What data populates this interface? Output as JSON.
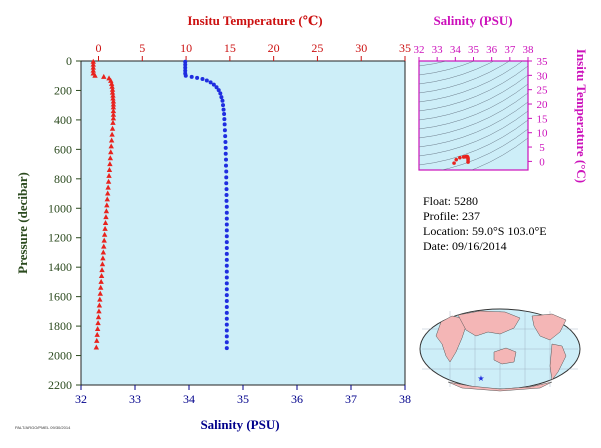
{
  "meta": {
    "small_caption": "PALT/ARGO/PMEL 09/30/2014"
  },
  "chart_data": [
    {
      "type": "scatter",
      "title": "",
      "top_axis_label": "Insitu Temperature (℃)",
      "bottom_axis_label": "Salinity (PSU)",
      "ylabel": "Pressure (decibar)",
      "temp_lim": [
        -2,
        35
      ],
      "sal_lim": [
        32,
        38
      ],
      "ylim": [
        0,
        2200
      ],
      "y_inverted": true,
      "temp_ticks": [
        0,
        5,
        10,
        15,
        20,
        25,
        30,
        35
      ],
      "sal_ticks": [
        32,
        33,
        34,
        35,
        36,
        37,
        38
      ],
      "y_ticks": [
        0,
        200,
        400,
        600,
        800,
        1000,
        1200,
        1400,
        1600,
        1800,
        2000,
        2200
      ],
      "colors": {
        "temperature": "#e8231e",
        "salinity": "#1f2de0",
        "temp_axis": "#cc1111",
        "sal_axis": "#00008b",
        "pressure_axis": "#2b4a1e",
        "background": "#cdeef8"
      },
      "series": [
        {
          "name": "Temperature",
          "marker": "triangle",
          "color": "#e8231e",
          "points": [
            [
              -0.6,
              5
            ],
            [
              -0.6,
              25
            ],
            [
              -0.6,
              45
            ],
            [
              -0.6,
              65
            ],
            [
              -0.6,
              85
            ],
            [
              -0.4,
              100
            ],
            [
              0.6,
              108
            ],
            [
              1.2,
              118
            ],
            [
              1.4,
              135
            ],
            [
              1.5,
              155
            ],
            [
              1.55,
              175
            ],
            [
              1.6,
              195
            ],
            [
              1.6,
              215
            ],
            [
              1.65,
              235
            ],
            [
              1.65,
              255
            ],
            [
              1.7,
              275
            ],
            [
              1.7,
              295
            ],
            [
              1.7,
              315
            ],
            [
              1.7,
              340
            ],
            [
              1.7,
              365
            ],
            [
              1.7,
              390
            ],
            [
              1.65,
              420
            ],
            [
              1.6,
              460
            ],
            [
              1.55,
              500
            ],
            [
              1.5,
              540
            ],
            [
              1.45,
              580
            ],
            [
              1.4,
              620
            ],
            [
              1.35,
              660
            ],
            [
              1.3,
              700
            ],
            [
              1.25,
              740
            ],
            [
              1.2,
              780
            ],
            [
              1.15,
              820
            ],
            [
              1.1,
              860
            ],
            [
              1.05,
              900
            ],
            [
              1.0,
              940
            ],
            [
              0.95,
              980
            ],
            [
              0.9,
              1020
            ],
            [
              0.85,
              1060
            ],
            [
              0.8,
              1100
            ],
            [
              0.75,
              1140
            ],
            [
              0.7,
              1180
            ],
            [
              0.65,
              1220
            ],
            [
              0.6,
              1260
            ],
            [
              0.55,
              1300
            ],
            [
              0.5,
              1340
            ],
            [
              0.45,
              1380
            ],
            [
              0.4,
              1420
            ],
            [
              0.35,
              1460
            ],
            [
              0.3,
              1500
            ],
            [
              0.25,
              1540
            ],
            [
              0.2,
              1580
            ],
            [
              0.15,
              1620
            ],
            [
              0.1,
              1660
            ],
            [
              0.05,
              1700
            ],
            [
              0.0,
              1740
            ],
            [
              -0.05,
              1780
            ],
            [
              -0.1,
              1820
            ],
            [
              -0.15,
              1860
            ],
            [
              -0.2,
              1900
            ],
            [
              -0.25,
              1945
            ]
          ]
        },
        {
          "name": "Salinity",
          "marker": "circle",
          "color": "#1f2de0",
          "points": [
            [
              33.93,
              5
            ],
            [
              33.93,
              25
            ],
            [
              33.93,
              45
            ],
            [
              33.93,
              65
            ],
            [
              33.93,
              85
            ],
            [
              33.94,
              100
            ],
            [
              34.05,
              108
            ],
            [
              34.15,
              115
            ],
            [
              34.25,
              122
            ],
            [
              34.33,
              132
            ],
            [
              34.4,
              145
            ],
            [
              34.46,
              160
            ],
            [
              34.51,
              178
            ],
            [
              34.55,
              198
            ],
            [
              34.58,
              220
            ],
            [
              34.6,
              245
            ],
            [
              34.62,
              270
            ],
            [
              34.63,
              300
            ],
            [
              34.64,
              330
            ],
            [
              34.65,
              360
            ],
            [
              34.655,
              395
            ],
            [
              34.66,
              430
            ],
            [
              34.665,
              470
            ],
            [
              34.67,
              510
            ],
            [
              34.675,
              550
            ],
            [
              34.68,
              590
            ],
            [
              34.68,
              630
            ],
            [
              34.685,
              670
            ],
            [
              34.685,
              710
            ],
            [
              34.69,
              750
            ],
            [
              34.69,
              790
            ],
            [
              34.69,
              830
            ],
            [
              34.695,
              870
            ],
            [
              34.695,
              910
            ],
            [
              34.695,
              950
            ],
            [
              34.7,
              990
            ],
            [
              34.7,
              1030
            ],
            [
              34.7,
              1070
            ],
            [
              34.7,
              1110
            ],
            [
              34.7,
              1150
            ],
            [
              34.7,
              1190
            ],
            [
              34.7,
              1230
            ],
            [
              34.7,
              1270
            ],
            [
              34.7,
              1310
            ],
            [
              34.7,
              1350
            ],
            [
              34.7,
              1390
            ],
            [
              34.7,
              1430
            ],
            [
              34.7,
              1470
            ],
            [
              34.7,
              1510
            ],
            [
              34.7,
              1550
            ],
            [
              34.7,
              1590
            ],
            [
              34.7,
              1630
            ],
            [
              34.7,
              1670
            ],
            [
              34.7,
              1710
            ],
            [
              34.7,
              1750
            ],
            [
              34.7,
              1790
            ],
            [
              34.7,
              1830
            ],
            [
              34.7,
              1870
            ],
            [
              34.7,
              1910
            ],
            [
              34.7,
              1950
            ]
          ]
        }
      ]
    },
    {
      "type": "scatter",
      "title": "",
      "xlabel": "Salinity (PSU)",
      "ylabel": "Insitu Temperature (°C)",
      "xlim": [
        32,
        38
      ],
      "ylim": [
        -3,
        35
      ],
      "x_ticks": [
        32,
        33,
        34,
        35,
        36,
        37,
        38
      ],
      "y_ticks": [
        0,
        5,
        10,
        15,
        20,
        25,
        30,
        35
      ],
      "colors": {
        "axis": "#cc11bb",
        "points": "#e8231e",
        "contours": "#6a7a8a",
        "background": "#cdeef8"
      },
      "series": [
        {
          "name": "T-S",
          "points": [
            [
              33.93,
              -0.6
            ],
            [
              34.05,
              0.6
            ],
            [
              34.25,
              1.3
            ],
            [
              34.46,
              1.55
            ],
            [
              34.55,
              1.6
            ],
            [
              34.6,
              1.65
            ],
            [
              34.63,
              1.7
            ],
            [
              34.65,
              1.7
            ],
            [
              34.67,
              1.55
            ],
            [
              34.69,
              1.3
            ],
            [
              34.7,
              1.0
            ],
            [
              34.7,
              0.5
            ],
            [
              34.7,
              -0.25
            ]
          ]
        }
      ]
    }
  ],
  "info": {
    "float": "Float:  5280",
    "profile": "Profile:  237",
    "location": "Location:  59.0°S  103.0°E",
    "date": "Date:  09/16/2014"
  },
  "map": {
    "marker": "★",
    "marker_color": "#1f2de0",
    "land_color": "#f4b6b6",
    "ocean_color": "#cdeef8"
  }
}
